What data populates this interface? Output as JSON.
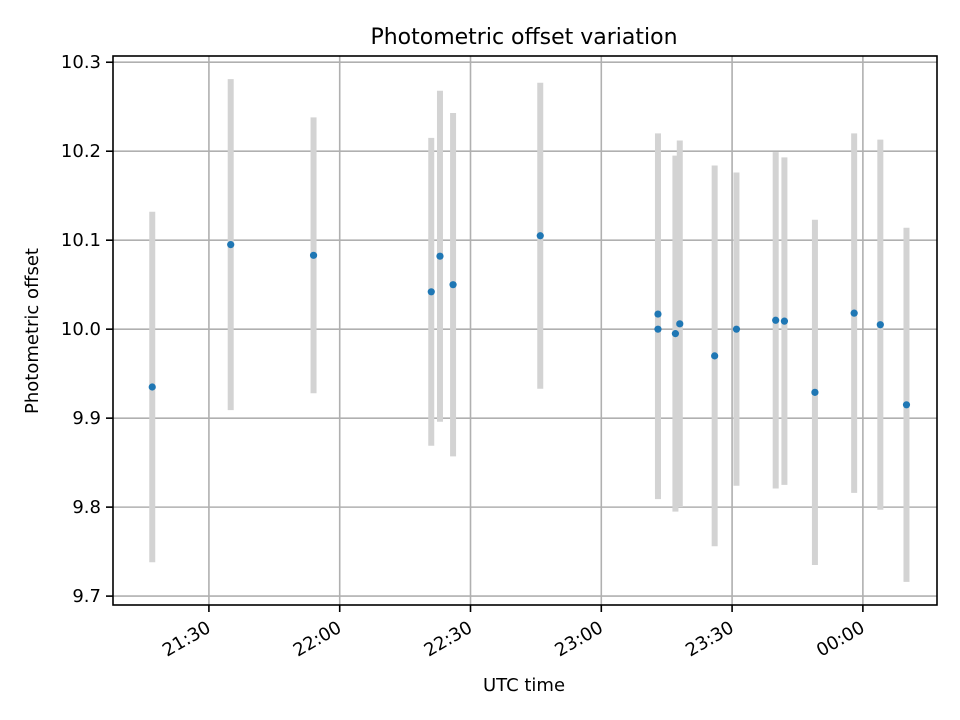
{
  "chart_data": {
    "type": "scatter",
    "title": "Photometric offset variation",
    "xlabel": "UTC time",
    "ylabel": "Photometric offset",
    "x_is_time": true,
    "xlim": [
      "21:08",
      "00:17"
    ],
    "ylim": [
      9.69,
      10.307
    ],
    "grid": true,
    "x_ticks": [
      {
        "value": "21:30",
        "label": "21:30"
      },
      {
        "value": "22:00",
        "label": "22:00"
      },
      {
        "value": "22:30",
        "label": "22:30"
      },
      {
        "value": "23:00",
        "label": "23:00"
      },
      {
        "value": "23:30",
        "label": "23:30"
      },
      {
        "value": "00:00",
        "label": "00:00"
      }
    ],
    "y_ticks": [
      9.7,
      9.8,
      9.9,
      10.0,
      10.1,
      10.2,
      10.3
    ],
    "y_tick_labels": [
      "9.7",
      "9.8",
      "9.9",
      "10.0",
      "10.1",
      "10.2",
      "10.3"
    ],
    "point_color": "#1f77b4",
    "errorbar_color": "#d3d3d3",
    "points": [
      {
        "t": "21:17",
        "y": 9.935,
        "err": 0.197
      },
      {
        "t": "21:35",
        "y": 10.095,
        "err": 0.186
      },
      {
        "t": "21:54",
        "y": 10.083,
        "err": 0.155
      },
      {
        "t": "22:21",
        "y": 10.042,
        "err": 0.173
      },
      {
        "t": "22:23",
        "y": 10.082,
        "err": 0.186
      },
      {
        "t": "22:26",
        "y": 10.05,
        "err": 0.193
      },
      {
        "t": "22:46",
        "y": 10.105,
        "err": 0.172
      },
      {
        "t": "23:13",
        "y": 10.0,
        "err": 0.191
      },
      {
        "t": "23:13",
        "y": 10.017,
        "err": 0.203
      },
      {
        "t": "23:17",
        "y": 9.995,
        "err": 0.2
      },
      {
        "t": "23:18",
        "y": 10.006,
        "err": 0.206
      },
      {
        "t": "23:26",
        "y": 9.97,
        "err": 0.214
      },
      {
        "t": "23:31",
        "y": 10.0,
        "err": 0.176
      },
      {
        "t": "23:40",
        "y": 10.01,
        "err": 0.189
      },
      {
        "t": "23:42",
        "y": 10.009,
        "err": 0.184
      },
      {
        "t": "23:49",
        "y": 9.929,
        "err": 0.194
      },
      {
        "t": "23:58",
        "y": 10.018,
        "err": 0.202
      },
      {
        "t": "00:04",
        "y": 10.005,
        "err": 0.208
      },
      {
        "t": "00:10",
        "y": 9.915,
        "err": 0.199
      }
    ]
  }
}
